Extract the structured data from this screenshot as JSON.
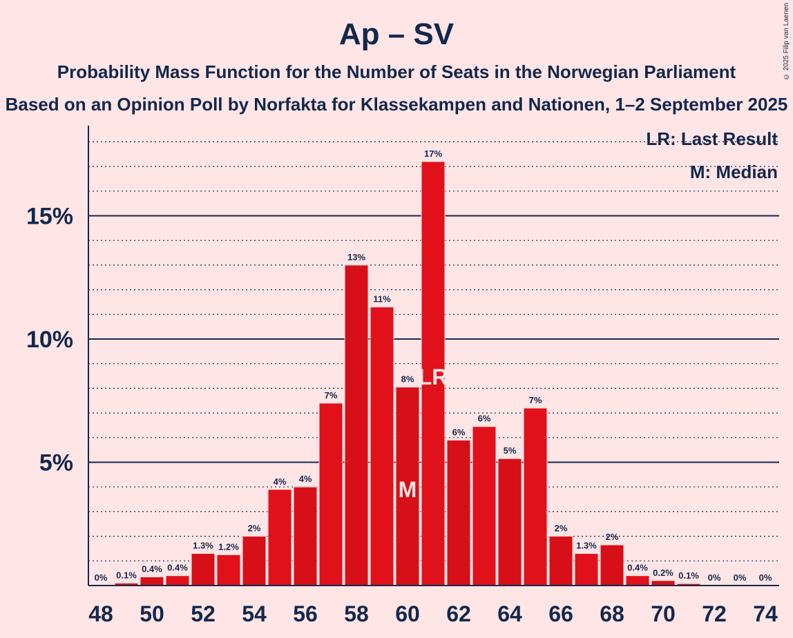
{
  "copyright": "© 2025 Filip van Laenen",
  "chart_data": {
    "type": "bar",
    "title": "Ap – SV",
    "subtitle": "Probability Mass Function for the Number of Seats in the Norwegian Parliament",
    "subtitle2": "Based on an Opinion Poll by Norfakta for Klassekampen and Nationen, 1–2 September 2025",
    "xlabel": "",
    "ylabel": "",
    "categories": [
      48,
      49,
      50,
      51,
      52,
      53,
      54,
      55,
      56,
      57,
      58,
      59,
      60,
      61,
      62,
      63,
      64,
      65,
      66,
      67,
      68,
      69,
      70,
      71,
      72,
      73,
      74
    ],
    "values": [
      0,
      0.1,
      0.35,
      0.4,
      1.3,
      1.25,
      2,
      3.9,
      4,
      7.4,
      13,
      11.3,
      8.05,
      17.2,
      5.9,
      6.45,
      5.15,
      7.2,
      2,
      1.3,
      1.65,
      0.4,
      0.2,
      0.08,
      0,
      0,
      0
    ],
    "value_labels": [
      "0%",
      "0.1%",
      "0.4%",
      "0.4%",
      "1.3%",
      "1.2%",
      "2%",
      "4%",
      "4%",
      "7%",
      "13%",
      "11%",
      "8%",
      "17%",
      "6%",
      "6%",
      "5%",
      "7%",
      "2%",
      "1.3%",
      "2%",
      "0.4%",
      "0.2%",
      "0.1%",
      "0%",
      "0%",
      "0%"
    ],
    "x_tick_labels": [
      "48",
      "50",
      "52",
      "54",
      "56",
      "58",
      "60",
      "62",
      "64",
      "66",
      "68",
      "70",
      "72",
      "74"
    ],
    "x_tick_values": [
      48,
      50,
      52,
      54,
      56,
      58,
      60,
      62,
      64,
      66,
      68,
      70,
      72,
      74
    ],
    "y_tick_labels": [
      "5%",
      "10%",
      "15%"
    ],
    "y_tick_values": [
      5,
      10,
      15
    ],
    "ylim": [
      0,
      18.7
    ],
    "grid": true,
    "median_seat": 60,
    "median_marker": "M",
    "last_result_seat": 61,
    "last_result_marker": "LR",
    "legend": [
      "LR: Last Result",
      "M: Median"
    ],
    "legend_position": "top-right",
    "colors": {
      "bar_odd": "#E0111B",
      "bar_even": "#D70F18",
      "axis": "#12284C",
      "background": "#FFE5E5",
      "marker_text": "#FFE5E5"
    }
  }
}
